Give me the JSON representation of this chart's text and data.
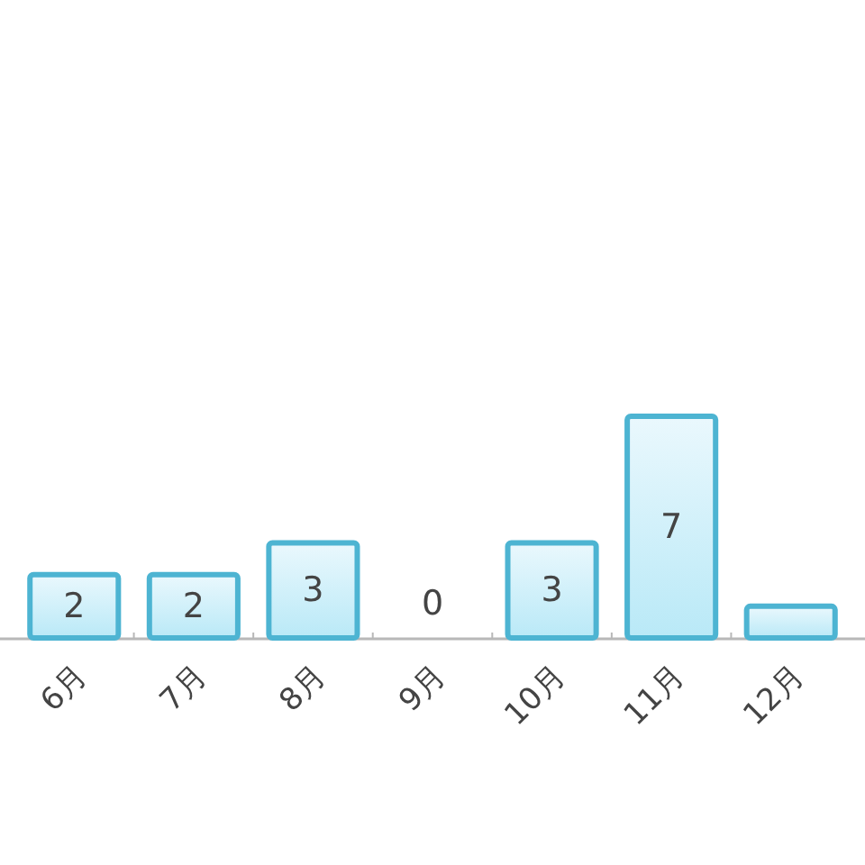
{
  "chart_data": {
    "type": "bar",
    "categories": [
      "6月",
      "7月",
      "8月",
      "9月",
      "10月",
      "11月",
      "12月"
    ],
    "values": [
      2,
      2,
      3,
      0,
      3,
      7,
      1
    ],
    "value_labels": [
      "2",
      "2",
      "3",
      "0",
      "3",
      "7",
      null
    ],
    "color": "#4db4d2"
  }
}
